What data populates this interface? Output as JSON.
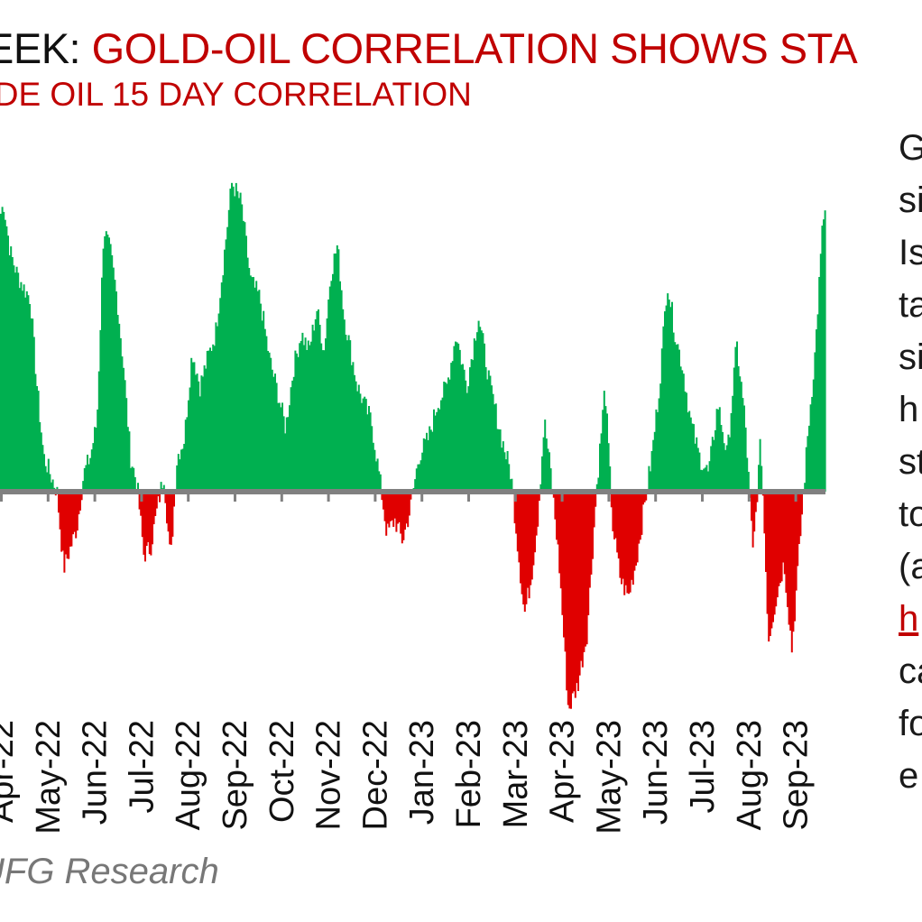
{
  "header": {
    "title_prefix": "EEK: ",
    "title_main": "GOLD-OIL CORRELATION SHOWS STA",
    "subtitle": "UDE OIL 15 DAY CORRELATION"
  },
  "sidebar_text": [
    "G",
    "si",
    "Is",
    "ta",
    "si",
    "h",
    "st",
    "to",
    "(a",
    "h",
    "ca",
    "fo",
    "e"
  ],
  "source": "UFG Research",
  "colors": {
    "positive": "#00b050",
    "negative": "#e00000",
    "zero_line": "#808080",
    "title": "#c00000"
  },
  "chart_data": {
    "type": "area",
    "title": "GOLD-OIL CORRELATION SHOWS STA",
    "subtitle": "UDE OIL 15 DAY CORRELATION",
    "xlabel": "",
    "ylabel": "",
    "ylim": [
      -0.6,
      0.85
    ],
    "grid": false,
    "x_tick_labels": [
      "Apr-22",
      "May-22",
      "Jun-22",
      "Jul-22",
      "Aug-22",
      "Sep-22",
      "Oct-22",
      "Nov-22",
      "Dec-22",
      "Jan-23",
      "Feb-23",
      "Mar-23",
      "Apr-23",
      "May-23",
      "Jun-23",
      "Jul-23",
      "Aug-23",
      "Sep-23"
    ],
    "series": [
      {
        "points": [
          [
            "Apr-22",
            0.75
          ],
          [
            "Apr-22",
            0.82
          ],
          [
            "Apr-22",
            0.68
          ],
          [
            "Apr-22",
            0.62
          ],
          [
            "Apr-22",
            0.58
          ],
          [
            "Apr-22",
            0.55
          ],
          [
            "Apr-22",
            0.3
          ],
          [
            "May-22",
            0.1
          ],
          [
            "May-22",
            0.05
          ],
          [
            "May-22",
            0.0
          ],
          [
            "May-22",
            -0.22
          ],
          [
            "May-22",
            -0.16
          ],
          [
            "May-22",
            -0.1
          ],
          [
            "May-22",
            0.05
          ],
          [
            "Jun-22",
            0.1
          ],
          [
            "Jun-22",
            0.2
          ],
          [
            "Jun-22",
            0.75
          ],
          [
            "Jun-22",
            0.68
          ],
          [
            "Jun-22",
            0.55
          ],
          [
            "Jun-22",
            0.35
          ],
          [
            "Jun-22",
            0.1
          ],
          [
            "Jul-22",
            0.02
          ],
          [
            "Jul-22",
            -0.18
          ],
          [
            "Jul-22",
            -0.16
          ],
          [
            "Jul-22",
            -0.05
          ],
          [
            "Jul-22",
            0.05
          ],
          [
            "Jul-22",
            -0.2
          ],
          [
            "Jul-22",
            0.1
          ],
          [
            "Aug-22",
            0.15
          ],
          [
            "Aug-22",
            0.4
          ],
          [
            "Aug-22",
            0.3
          ],
          [
            "Aug-22",
            0.38
          ],
          [
            "Aug-22",
            0.45
          ],
          [
            "Aug-22",
            0.65
          ],
          [
            "Sep-22",
            0.88
          ],
          [
            "Sep-22",
            0.82
          ],
          [
            "Sep-22",
            0.6
          ],
          [
            "Sep-22",
            0.55
          ],
          [
            "Sep-22",
            0.38
          ],
          [
            "Oct-22",
            0.28
          ],
          [
            "Oct-22",
            0.18
          ],
          [
            "Oct-22",
            0.35
          ],
          [
            "Oct-22",
            0.45
          ],
          [
            "Oct-22",
            0.4
          ],
          [
            "Oct-22",
            0.52
          ],
          [
            "Nov-22",
            0.4
          ],
          [
            "Nov-22",
            0.62
          ],
          [
            "Nov-22",
            0.7
          ],
          [
            "Nov-22",
            0.5
          ],
          [
            "Nov-22",
            0.4
          ],
          [
            "Nov-22",
            0.3
          ],
          [
            "Nov-22",
            0.25
          ],
          [
            "Dec-22",
            0.2
          ],
          [
            "Dec-22",
            0.05
          ],
          [
            "Dec-22",
            -0.12
          ],
          [
            "Dec-22",
            -0.08
          ],
          [
            "Dec-22",
            -0.14
          ],
          [
            "Dec-22",
            -0.05
          ],
          [
            "Jan-23",
            0.1
          ],
          [
            "Jan-23",
            0.15
          ],
          [
            "Jan-23",
            0.25
          ],
          [
            "Jan-23",
            0.3
          ],
          [
            "Jan-23",
            0.45
          ],
          [
            "Feb-23",
            0.3
          ],
          [
            "Feb-23",
            0.5
          ],
          [
            "Feb-23",
            0.3
          ],
          [
            "Feb-23",
            0.15
          ],
          [
            "Mar-23",
            0.05
          ],
          [
            "Mar-23",
            -0.15
          ],
          [
            "Mar-23",
            -0.35
          ],
          [
            "Mar-23",
            -0.25
          ],
          [
            "Mar-23",
            -0.08
          ],
          [
            "Mar-23",
            0.2
          ],
          [
            "Mar-23",
            0.05
          ],
          [
            "Apr-23",
            -0.2
          ],
          [
            "Apr-23",
            -0.62
          ],
          [
            "Apr-23",
            -0.55
          ],
          [
            "Apr-23",
            -0.4
          ],
          [
            "Apr-23",
            0.0
          ],
          [
            "May-23",
            0.3
          ],
          [
            "May-23",
            -0.1
          ],
          [
            "May-23",
            -0.25
          ],
          [
            "May-23",
            -0.3
          ],
          [
            "May-23",
            -0.2
          ],
          [
            "May-23",
            -0.05
          ],
          [
            "Jun-23",
            0.1
          ],
          [
            "Jun-23",
            0.3
          ],
          [
            "Jun-23",
            0.6
          ],
          [
            "Jun-23",
            0.45
          ],
          [
            "Jun-23",
            0.35
          ],
          [
            "Jun-23",
            0.2
          ],
          [
            "Jul-23",
            0.1
          ],
          [
            "Jul-23",
            0.05
          ],
          [
            "Jul-23",
            0.25
          ],
          [
            "Jul-23",
            0.1
          ],
          [
            "Jul-23",
            0.42
          ],
          [
            "Aug-23",
            0.2
          ],
          [
            "Aug-23",
            -0.18
          ],
          [
            "Aug-23",
            0.15
          ],
          [
            "Aug-23",
            -0.42
          ],
          [
            "Aug-23",
            -0.3
          ],
          [
            "Aug-23",
            -0.2
          ],
          [
            "Sep-23",
            -0.45
          ],
          [
            "Sep-23",
            -0.15
          ],
          [
            "Sep-23",
            0.15
          ],
          [
            "Sep-23",
            0.4
          ],
          [
            "Sep-23",
            0.78
          ],
          [
            "Sep-23",
            0.82
          ]
        ]
      }
    ]
  }
}
